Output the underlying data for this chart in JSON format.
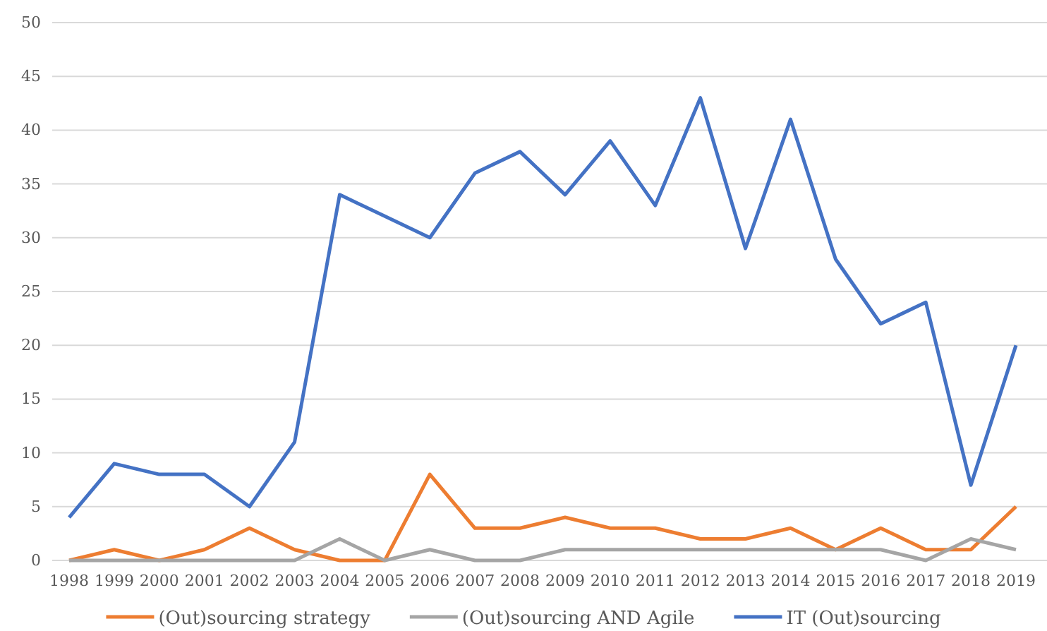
{
  "chart_data": {
    "type": "line",
    "categories": [
      "1998",
      "1999",
      "2000",
      "2001",
      "2002",
      "2003",
      "2004",
      "2005",
      "2006",
      "2007",
      "2008",
      "2009",
      "2010",
      "2011",
      "2012",
      "2013",
      "2014",
      "2015",
      "2016",
      "2017",
      "2018",
      "2019"
    ],
    "series": [
      {
        "name": "(Out)sourcing strategy",
        "color": "#ed7d31",
        "values": [
          0,
          1,
          0,
          1,
          3,
          1,
          0,
          0,
          8,
          3,
          3,
          4,
          3,
          3,
          2,
          2,
          3,
          1,
          3,
          1,
          1,
          5
        ]
      },
      {
        "name": "(Out)sourcing AND Agile",
        "color": "#a5a5a5",
        "values": [
          0,
          0,
          0,
          0,
          0,
          0,
          2,
          0,
          1,
          0,
          0,
          1,
          1,
          1,
          1,
          1,
          1,
          1,
          1,
          0,
          2,
          1
        ]
      },
      {
        "name": "IT (Out)sourcing",
        "color": "#4472c4",
        "values": [
          4,
          9,
          8,
          8,
          5,
          11,
          34,
          32,
          30,
          36,
          38,
          34,
          39,
          33,
          43,
          29,
          41,
          28,
          22,
          24,
          7,
          20
        ]
      }
    ],
    "ylim": [
      0,
      50
    ],
    "yticks": [
      0,
      5,
      10,
      15,
      20,
      25,
      30,
      35,
      40,
      45,
      50
    ],
    "grid": "y",
    "legend": "bottom",
    "marker": "none",
    "line_style": "solid"
  }
}
